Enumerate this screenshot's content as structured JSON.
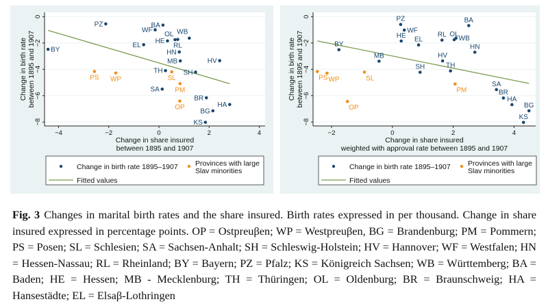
{
  "colors": {
    "panel_bg": "#eaf2f3",
    "main": "#1a476f",
    "slav": "#f28e1c",
    "fit": "#7a9a4e"
  },
  "legend": {
    "main": "Change in birth rate 1895–1907",
    "slav": [
      "Provinces with large",
      "Slav minorities"
    ],
    "fit": "Fitted values"
  },
  "caption": {
    "fig": "Fig. 3",
    "text": "Changes in marital birth rates and the share insured. Birth rates expressed in per thousand. Change in share insured expressed in percentage points. OP = Ostpreuβen; WP = Westpreuβen, BG = Brandenburg; PM = Pommern; PS = Posen; SL = Schlesien; SA = Sachsen-Anhalt; SH = Schleswig-Holstein; HV = Hannover; WF = Westfalen; HN = Hessen-Nassau; RL = Rheinland; BY = Bayern; PZ = Pfalz; KS = Königreich Sachsen; WB = Württemberg; BA = Baden; HE = Hessen; MB - Mecklenburg; TH = Thüringen; OL = Oldenburg; BR = Braunschweig; HA = Hansestädte; EL = Elsaβ-Lothringen"
  },
  "chart_data": [
    {
      "type": "scatter",
      "xlabel": [
        "Change in share insured",
        "between 1895 and 1907"
      ],
      "ylabel": [
        "Change in birth rate",
        "between 1895 and 1907"
      ],
      "xlim": [
        -4.56,
        4.23
      ],
      "ylim": [
        -8.3,
        0.33
      ],
      "xticks": [
        -4,
        -2,
        0,
        2,
        4
      ],
      "yticks": [
        0,
        -2,
        -4,
        -6,
        -8
      ],
      "xtick_labels": [
        "−4",
        "−2",
        "0",
        "2",
        "4"
      ],
      "ytick_labels": [
        "0",
        "−2",
        "−4",
        "−6",
        "−8"
      ],
      "grid": true,
      "legend": "bottom",
      "fit_line": {
        "x": [
          -4.42,
          2.82
        ],
        "y": [
          -1.04,
          -5.09
        ]
      },
      "points": [
        {
          "label": "BY",
          "x": -4.42,
          "y": -2.48,
          "group": "main",
          "pos": "right"
        },
        {
          "label": "PZ",
          "x": -2.12,
          "y": -0.55,
          "group": "main",
          "pos": "left"
        },
        {
          "label": "BA",
          "x": 0.16,
          "y": -0.64,
          "group": "main",
          "pos": "left"
        },
        {
          "label": "WF",
          "x": -0.15,
          "y": -1.0,
          "group": "main",
          "pos": "left"
        },
        {
          "label": "OL",
          "x": 0.64,
          "y": -1.75,
          "group": "main",
          "pos": "aboveleft"
        },
        {
          "label": "WB",
          "x": 1.21,
          "y": -1.63,
          "group": "main",
          "pos": "aboveleft2"
        },
        {
          "label": "RL",
          "x": 0.75,
          "y": -1.73,
          "group": "main",
          "pos": "below"
        },
        {
          "label": "HE",
          "x": 0.34,
          "y": -1.84,
          "group": "main",
          "pos": "left"
        },
        {
          "label": "EL",
          "x": -0.61,
          "y": -2.13,
          "group": "main",
          "pos": "left"
        },
        {
          "label": "HN",
          "x": 0.81,
          "y": -2.68,
          "group": "main",
          "pos": "left"
        },
        {
          "label": "MB",
          "x": 0.85,
          "y": -3.36,
          "group": "main",
          "pos": "left"
        },
        {
          "label": "HV",
          "x": 2.42,
          "y": -3.34,
          "group": "main",
          "pos": "left"
        },
        {
          "label": "TH",
          "x": 0.26,
          "y": -4.1,
          "group": "main",
          "pos": "left"
        },
        {
          "label": "SH",
          "x": 1.46,
          "y": -4.21,
          "group": "main",
          "pos": "left"
        },
        {
          "label": "SA",
          "x": 0.13,
          "y": -5.5,
          "group": "main",
          "pos": "left"
        },
        {
          "label": "BR",
          "x": 1.89,
          "y": -6.16,
          "group": "main",
          "pos": "left"
        },
        {
          "label": "HA",
          "x": 2.82,
          "y": -6.67,
          "group": "main",
          "pos": "left"
        },
        {
          "label": "BG",
          "x": 2.15,
          "y": -7.15,
          "group": "main",
          "pos": "left"
        },
        {
          "label": "KS",
          "x": 1.85,
          "y": -8.02,
          "group": "main",
          "pos": "left"
        },
        {
          "label": "PS",
          "x": -2.57,
          "y": -4.16,
          "group": "slav",
          "pos": "below"
        },
        {
          "label": "WP",
          "x": -1.72,
          "y": -4.28,
          "group": "slav",
          "pos": "below"
        },
        {
          "label": "SL",
          "x": 0.51,
          "y": -4.19,
          "group": "slav",
          "pos": "below"
        },
        {
          "label": "PM",
          "x": 0.84,
          "y": -5.09,
          "group": "slav",
          "pos": "below"
        },
        {
          "label": "OP",
          "x": 0.83,
          "y": -6.41,
          "group": "slav",
          "pos": "below"
        }
      ]
    },
    {
      "type": "scatter",
      "xlabel": [
        "Change in share insured",
        "weighted with approval rate  between 1895 and 1907"
      ],
      "ylabel": [
        "Change in birth rate",
        "between 1895 and 1907"
      ],
      "xlim": [
        -2.61,
        4.71
      ],
      "ylim": [
        -8.3,
        0.33
      ],
      "xticks": [
        -2,
        0,
        2,
        4
      ],
      "yticks": [
        0,
        -2,
        -4,
        -6,
        -8
      ],
      "xtick_labels": [
        "−2",
        "0",
        "2",
        "4"
      ],
      "ytick_labels": [
        "0",
        "−2",
        "−4",
        "−6",
        "−8"
      ],
      "grid": true,
      "legend": "bottom",
      "fit_line": {
        "x": [
          -2.47,
          4.49
        ],
        "y": [
          -1.84,
          -5.07
        ]
      },
      "points": [
        {
          "label": "BY",
          "x": -1.76,
          "y": -2.51,
          "group": "main",
          "pos": "above"
        },
        {
          "label": "PZ",
          "x": 0.27,
          "y": -0.59,
          "group": "main",
          "pos": "above"
        },
        {
          "label": "WF",
          "x": 0.39,
          "y": -1.02,
          "group": "main",
          "pos": "right"
        },
        {
          "label": "HE",
          "x": 0.29,
          "y": -1.85,
          "group": "main",
          "pos": "above"
        },
        {
          "label": "EL",
          "x": 0.86,
          "y": -2.15,
          "group": "main",
          "pos": "above"
        },
        {
          "label": "RL",
          "x": 1.63,
          "y": -1.78,
          "group": "main",
          "pos": "above"
        },
        {
          "label": "OL",
          "x": 2.03,
          "y": -1.75,
          "group": "main",
          "pos": "above"
        },
        {
          "label": "WB",
          "x": 2.09,
          "y": -1.63,
          "group": "main",
          "pos": "right"
        },
        {
          "label": "BA",
          "x": 2.51,
          "y": -0.68,
          "group": "main",
          "pos": "above"
        },
        {
          "label": "HN",
          "x": 2.71,
          "y": -2.7,
          "group": "main",
          "pos": "above"
        },
        {
          "label": "MB",
          "x": -0.44,
          "y": -3.38,
          "group": "main",
          "pos": "above"
        },
        {
          "label": "HV",
          "x": 1.65,
          "y": -3.36,
          "group": "main",
          "pos": "above"
        },
        {
          "label": "TH",
          "x": 1.91,
          "y": -4.12,
          "group": "main",
          "pos": "above"
        },
        {
          "label": "SH",
          "x": 0.91,
          "y": -4.22,
          "group": "main",
          "pos": "above"
        },
        {
          "label": "SA",
          "x": 3.42,
          "y": -5.54,
          "group": "main",
          "pos": "above"
        },
        {
          "label": "BR",
          "x": 3.65,
          "y": -6.18,
          "group": "main",
          "pos": "above"
        },
        {
          "label": "HA",
          "x": 3.93,
          "y": -6.68,
          "group": "main",
          "pos": "above"
        },
        {
          "label": "BG",
          "x": 4.49,
          "y": -7.15,
          "group": "main",
          "pos": "above"
        },
        {
          "label": "KS",
          "x": 4.31,
          "y": -8.03,
          "group": "main",
          "pos": "above"
        },
        {
          "label": "PS",
          "x": -2.47,
          "y": -4.17,
          "group": "slav",
          "pos": "belowright"
        },
        {
          "label": "WP",
          "x": -2.15,
          "y": -4.29,
          "group": "slav",
          "pos": "belowright"
        },
        {
          "label": "SL",
          "x": -0.92,
          "y": -4.21,
          "group": "slav",
          "pos": "belowright"
        },
        {
          "label": "PM",
          "x": 2.06,
          "y": -5.11,
          "group": "slav",
          "pos": "belowright"
        },
        {
          "label": "OP",
          "x": -1.48,
          "y": -6.44,
          "group": "slav",
          "pos": "belowright"
        }
      ]
    }
  ]
}
